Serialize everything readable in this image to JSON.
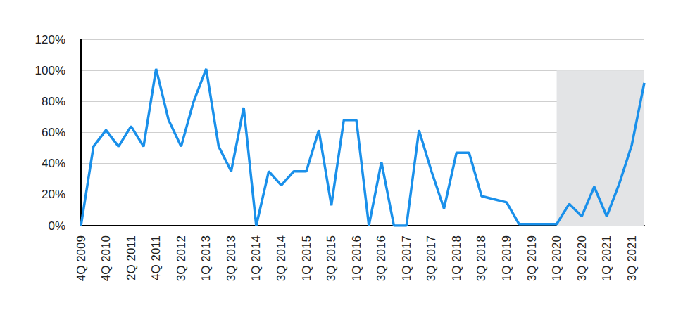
{
  "chart_data": {
    "type": "line",
    "categories": [
      "4Q 2009",
      null,
      "4Q 2010",
      null,
      "2Q 2011",
      null,
      "4Q 2011",
      null,
      "3Q 2012",
      null,
      "1Q 2013",
      null,
      "3Q 2013",
      null,
      "1Q 2014",
      null,
      "3Q 2014",
      null,
      "1Q 2015",
      null,
      "3Q 2015",
      null,
      "1Q 2016",
      null,
      "3Q 2016",
      null,
      "1Q 2017",
      null,
      "3Q 2017",
      null,
      "1Q 2018",
      null,
      "3Q 2018",
      null,
      "1Q 2019",
      null,
      "3Q 2019",
      null,
      "1Q 2020",
      null,
      "3Q 2020",
      null,
      "1Q 2021",
      null,
      "3Q 2021",
      null
    ],
    "values": [
      0,
      51,
      61.5,
      51,
      64,
      51,
      101,
      68,
      51,
      80,
      101,
      51,
      35,
      76,
      0,
      35,
      26,
      35,
      35,
      61.5,
      13,
      68,
      68,
      0,
      41,
      0,
      0,
      61.5,
      35,
      11,
      47,
      47,
      19,
      17,
      15,
      1,
      1,
      1,
      1,
      14,
      6,
      25,
      6,
      27,
      52,
      92
    ],
    "color": "#1a90ea",
    "ylim": [
      0,
      120
    ],
    "yticks": [
      {
        "value": 0,
        "label": "0%"
      },
      {
        "value": 20,
        "label": "20%"
      },
      {
        "value": 40,
        "label": "40%"
      },
      {
        "value": 60,
        "label": "60%"
      },
      {
        "value": 80,
        "label": "80%"
      },
      {
        "value": 100,
        "label": "100%"
      },
      {
        "value": 120,
        "label": "120%"
      }
    ],
    "grid": true,
    "shaded_region": {
      "x_from": "1Q 2020",
      "y_to": 100
    }
  }
}
